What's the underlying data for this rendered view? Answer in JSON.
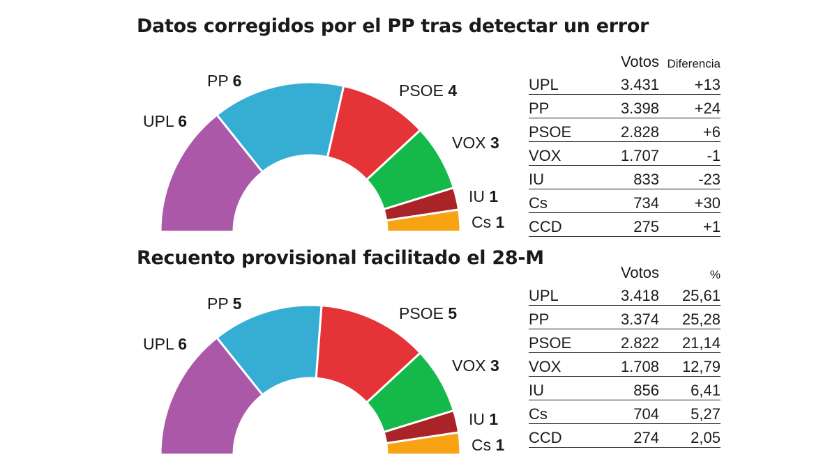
{
  "chart_data": [
    {
      "type": "pie",
      "variant": "semicircle",
      "title": "Datos corregidos por el PP tras detectar un error",
      "categories": [
        "UPL",
        "PP",
        "PSOE",
        "VOX",
        "IU",
        "Cs"
      ],
      "values": [
        6,
        6,
        4,
        3,
        1,
        1
      ],
      "colors": [
        "#ac58a8",
        "#36aed3",
        "#e53438",
        "#14b94a",
        "#aa2328",
        "#f7a313"
      ],
      "table": {
        "headers": [
          "",
          "Votos",
          "Diferencia"
        ],
        "rows": [
          [
            "UPL",
            "3.431",
            "+13"
          ],
          [
            "PP",
            "3.398",
            "+24"
          ],
          [
            "PSOE",
            "2.828",
            "+6"
          ],
          [
            "VOX",
            "1.707",
            "-1"
          ],
          [
            "IU",
            "833",
            "-23"
          ],
          [
            "Cs",
            "734",
            "+30"
          ],
          [
            "CCD",
            "275",
            "+1"
          ]
        ]
      }
    },
    {
      "type": "pie",
      "variant": "semicircle",
      "title": "Recuento provisional facilitado el 28-M",
      "categories": [
        "UPL",
        "PP",
        "PSOE",
        "VOX",
        "IU",
        "Cs"
      ],
      "values": [
        6,
        5,
        5,
        3,
        1,
        1
      ],
      "colors": [
        "#ac58a8",
        "#36aed3",
        "#e53438",
        "#14b94a",
        "#aa2328",
        "#f7a313"
      ],
      "table": {
        "headers": [
          "",
          "Votos",
          "%"
        ],
        "rows": [
          [
            "UPL",
            "3.418",
            "25,61"
          ],
          [
            "PP",
            "3.374",
            "25,28"
          ],
          [
            "PSOE",
            "2.822",
            "21,14"
          ],
          [
            "VOX",
            "1.708",
            "12,79"
          ],
          [
            "IU",
            "856",
            "6,41"
          ],
          [
            "Cs",
            "704",
            "5,27"
          ],
          [
            "CCD",
            "274",
            "2,05"
          ]
        ]
      }
    }
  ]
}
